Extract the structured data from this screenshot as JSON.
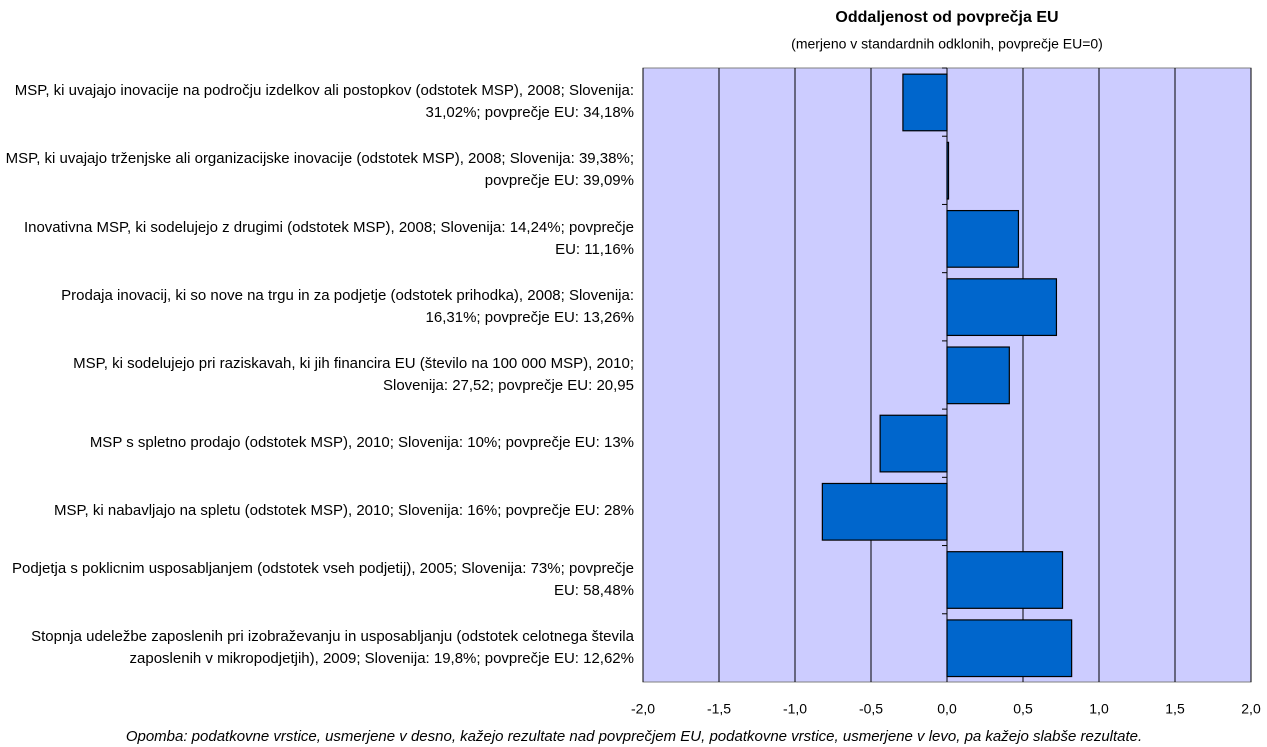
{
  "chart_data": {
    "type": "hbar",
    "title": "Oddaljenost od povprečja EU",
    "subtitle": "(merjeno v standardnih odklonih, povprečje EU=0)",
    "categories": [
      "MSP, ki uvajajo inovacije na področju izdelkov ali postopkov (odstotek MSP), 2008; Slovenija: 31,02%; povprečje EU: 34,18%",
      "MSP, ki uvajajo trženjske ali organizacijske inovacije (odstotek MSP), 2008; Slovenija: 39,38%; povprečje EU: 39,09%",
      "Inovativna MSP, ki sodelujejo z drugimi (odstotek MSP), 2008; Slovenija: 14,24%; povprečje EU: 11,16%",
      "Prodaja inovacij, ki so nove na trgu in za podjetje (odstotek prihodka), 2008; Slovenija: 16,31%; povprečje EU: 13,26%",
      "MSP, ki sodelujejo pri raziskavah, ki jih financira EU (število na 100 000 MSP), 2010; Slovenija: 27,52; povprečje EU: 20,95",
      "MSP s spletno prodajo (odstotek MSP), 2010; Slovenija: 10%; povprečje EU: 13%",
      "MSP, ki nabavljajo na spletu (odstotek MSP), 2010; Slovenija: 16%; povprečje EU: 28%",
      "Podjetja s poklicnim usposabljanjem (odstotek vseh podjetij), 2005; Slovenija: 73%; povprečje EU: 58,48%",
      "Stopnja udeležbe zaposlenih pri izobraževanju in usposabljanju (odstotek celotnega števila zaposlenih v mikropodjetjih), 2009; Slovenija: 19,8%; povprečje EU: 12,62%"
    ],
    "values": [
      -0.29,
      0.01,
      0.47,
      0.72,
      0.41,
      -0.44,
      -0.82,
      0.76,
      0.82
    ],
    "color": "#0066cc",
    "xlim": [
      -2,
      2
    ],
    "xticks": [
      {
        "value": -2,
        "label": "-2,0"
      },
      {
        "value": -1.5,
        "label": "-1,5"
      },
      {
        "value": -1,
        "label": "-1,0"
      },
      {
        "value": -0.5,
        "label": "-0,5"
      },
      {
        "value": 0,
        "label": "0,0"
      },
      {
        "value": 0.5,
        "label": "0,5"
      },
      {
        "value": 1,
        "label": "1,0"
      },
      {
        "value": 1.5,
        "label": "1,5"
      },
      {
        "value": 2,
        "label": "2,0"
      }
    ],
    "grid": true,
    "note": "Opomba: podatkovne vrstice, usmerjene v desno, kažejo rezultate nad povprečjem EU, podatkovne vrstice, usmerjene v levo, pa kažejo slabše rezultate."
  }
}
